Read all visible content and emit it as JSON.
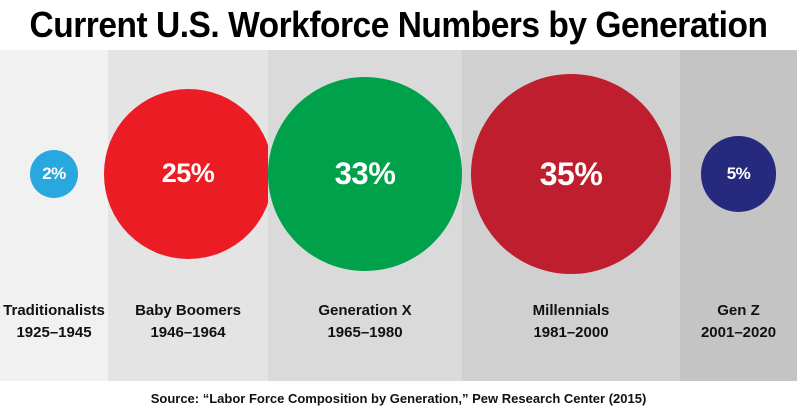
{
  "chart_data": {
    "type": "bubble",
    "title": "Current U.S. Workforce Numbers by Generation",
    "source": "Source: “Labor Force Composition by Generation,” Pew Research Center (2015)",
    "unit": "%",
    "categories": [
      {
        "name": "Traditionalists",
        "years": "1925–1945",
        "value": 2,
        "label": "2%",
        "color": "#29A8E0",
        "band_color": "#F1F1F1"
      },
      {
        "name": "Baby Boomers",
        "years": "1946–1964",
        "value": 25,
        "label": "25%",
        "color": "#EC1C24",
        "band_color": "#E4E4E4"
      },
      {
        "name": "Generation X",
        "years": "1965–1980",
        "value": 33,
        "label": "33%",
        "color": "#00A14B",
        "band_color": "#DADADA"
      },
      {
        "name": "Millennials",
        "years": "1981–2000",
        "value": 35,
        "label": "35%",
        "color": "#BE1E2D",
        "band_color": "#D0D0D0"
      },
      {
        "name": "Gen Z",
        "years": "2001–2020",
        "value": 5,
        "label": "5%",
        "color": "#262A7F",
        "band_color": "#C4C4C4"
      }
    ]
  }
}
